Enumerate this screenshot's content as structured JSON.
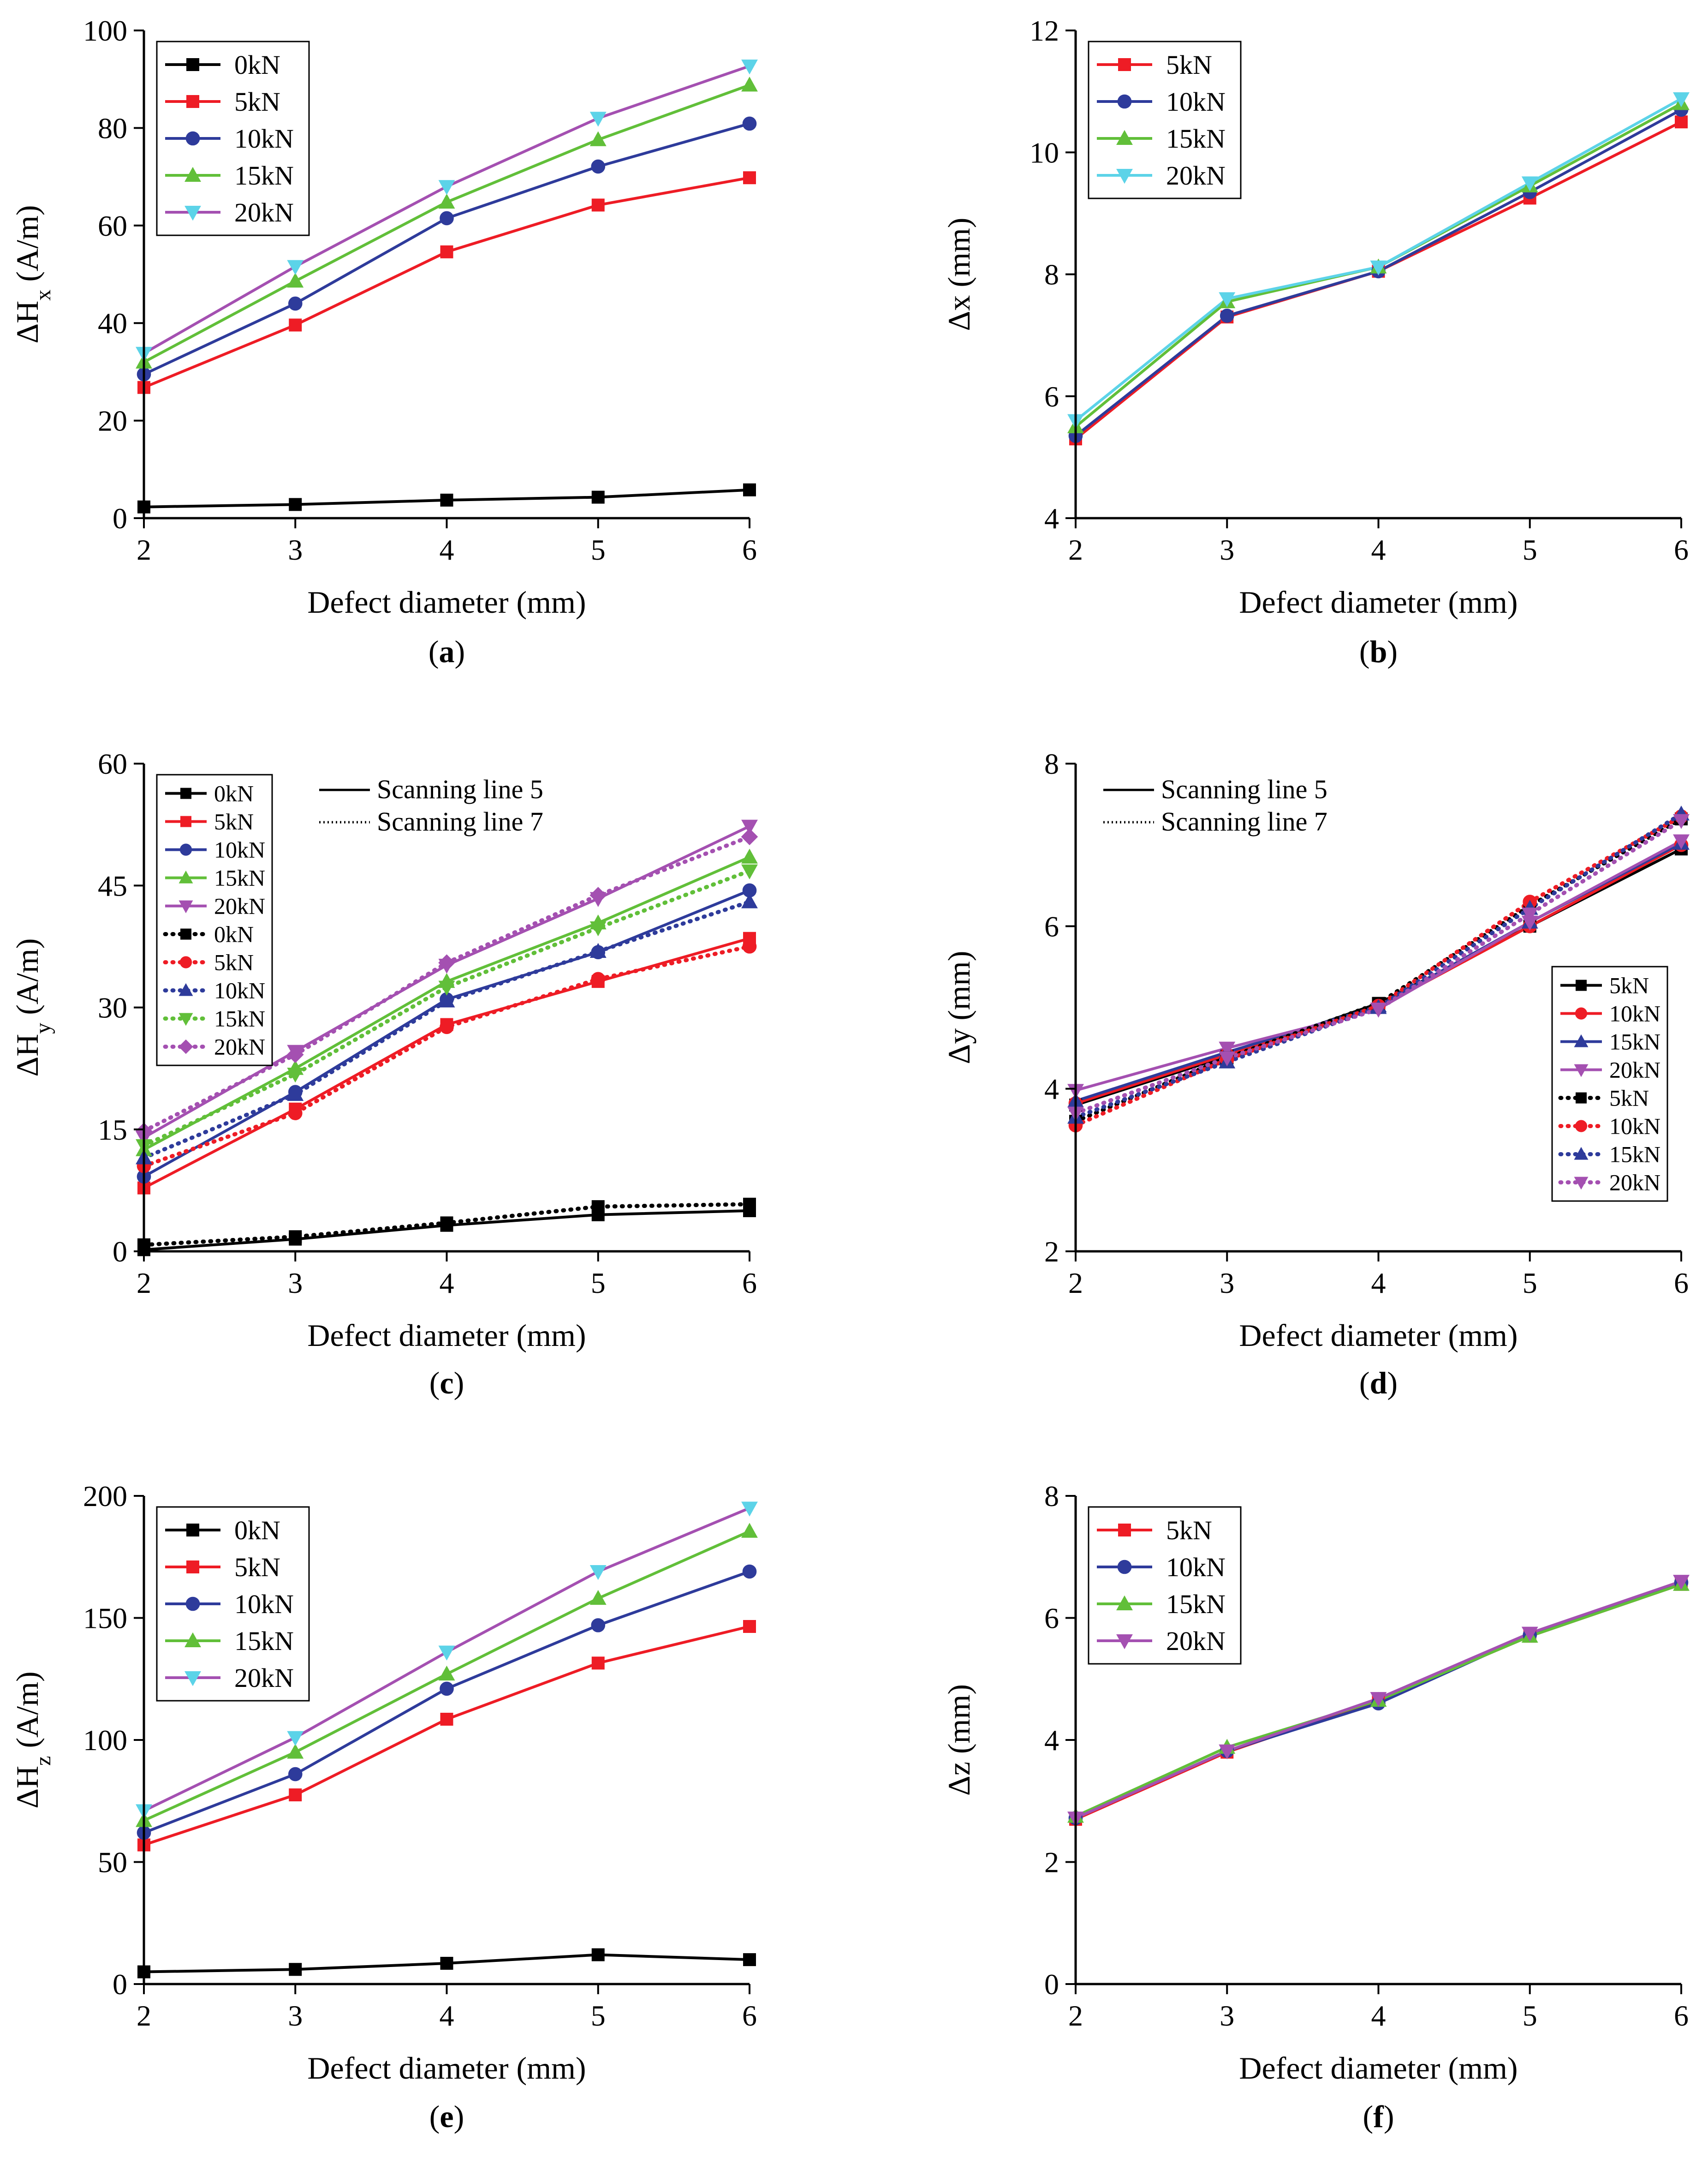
{
  "figure": {
    "background": "#ffffff"
  },
  "colors": {
    "0kN": "#000000",
    "5kN": "#ee1c25",
    "10kN": "#2e3b9b",
    "15kN": "#61bf39",
    "20kN": "#a450b1",
    "20kN_cyan": "#5cd3e8"
  },
  "chart_data": [
    {
      "panel": "a",
      "type": "line",
      "caption": "a",
      "xlabel": "Defect diameter (mm)",
      "ylabel": {
        "main": "ΔH",
        "sub": "x",
        "tail": " (A/m)"
      },
      "x": [
        2,
        3,
        4,
        5,
        6
      ],
      "xlim": [
        2,
        6
      ],
      "ylim": [
        0,
        100
      ],
      "xticks": [
        2,
        3,
        4,
        5,
        6
      ],
      "yticks": [
        0,
        20,
        40,
        60,
        80,
        100
      ],
      "legend": "top-left",
      "series": [
        {
          "name": "0kN",
          "values": [
            2.3,
            2.8,
            3.7,
            4.3,
            5.8
          ],
          "color": "#000000",
          "marker": "square",
          "dashed": false
        },
        {
          "name": "5kN",
          "values": [
            26.8,
            39.6,
            54.6,
            64.2,
            69.8
          ],
          "color": "#ee1c25",
          "marker": "square",
          "dashed": false
        },
        {
          "name": "10kN",
          "values": [
            29.5,
            44.0,
            61.5,
            72.1,
            80.9
          ],
          "color": "#2e3b9b",
          "marker": "circle",
          "dashed": false
        },
        {
          "name": "15kN",
          "values": [
            32.0,
            48.6,
            64.8,
            77.6,
            88.8
          ],
          "color": "#61bf39",
          "marker": "triangle-up",
          "dashed": false
        },
        {
          "name": "20kN",
          "values": [
            33.8,
            51.6,
            68.0,
            82.0,
            92.7
          ],
          "color": "#a450b1",
          "marker": "triangle-down",
          "marker_color": "#5cd3e8",
          "dashed": false
        }
      ]
    },
    {
      "panel": "b",
      "type": "line",
      "caption": "b",
      "xlabel": "Defect diameter (mm)",
      "ylabel": {
        "main": "Δx",
        "sub": "",
        "tail": " (mm)"
      },
      "x": [
        2,
        3,
        4,
        5,
        6
      ],
      "xlim": [
        2,
        6
      ],
      "ylim": [
        4,
        12
      ],
      "xticks": [
        2,
        3,
        4,
        5,
        6
      ],
      "yticks": [
        4,
        6,
        8,
        10,
        12
      ],
      "legend": "top-left",
      "series": [
        {
          "name": "5kN",
          "values": [
            5.3,
            7.3,
            8.05,
            9.25,
            10.5
          ],
          "color": "#ee1c25",
          "marker": "square",
          "dashed": false
        },
        {
          "name": "10kN",
          "values": [
            5.35,
            7.32,
            8.05,
            9.35,
            10.7
          ],
          "color": "#2e3b9b",
          "marker": "circle",
          "dashed": false
        },
        {
          "name": "15kN",
          "values": [
            5.5,
            7.55,
            8.12,
            9.45,
            10.8
          ],
          "color": "#61bf39",
          "marker": "triangle-up",
          "dashed": false
        },
        {
          "name": "20kN",
          "values": [
            5.6,
            7.6,
            8.12,
            9.5,
            10.88
          ],
          "color": "#5cd3e8",
          "marker": "triangle-down",
          "dashed": false
        }
      ]
    },
    {
      "panel": "c",
      "type": "line",
      "caption": "c",
      "xlabel": "Defect diameter (mm)",
      "ylabel": {
        "main": "ΔH",
        "sub": "y",
        "tail": " (A/m)"
      },
      "x": [
        2,
        3,
        4,
        5,
        6
      ],
      "xlim": [
        2,
        6
      ],
      "ylim": [
        0,
        60
      ],
      "xticks": [
        2,
        3,
        4,
        5,
        6
      ],
      "yticks": [
        0,
        15,
        30,
        45,
        60
      ],
      "legend": "top-left",
      "style_legend": [
        "Scanning line 5",
        "Scanning line 7"
      ],
      "series": [
        {
          "name": "0kN",
          "values": [
            0.2,
            1.5,
            3.2,
            4.5,
            5.0
          ],
          "color": "#000000",
          "marker": "square",
          "dashed": false
        },
        {
          "name": "5kN",
          "values": [
            7.8,
            17.5,
            27.9,
            33.2,
            38.5
          ],
          "color": "#ee1c25",
          "marker": "square",
          "dashed": false
        },
        {
          "name": "10kN",
          "values": [
            9.2,
            19.6,
            31.0,
            36.8,
            44.4
          ],
          "color": "#2e3b9b",
          "marker": "circle",
          "dashed": false
        },
        {
          "name": "15kN",
          "values": [
            12.5,
            22.5,
            33.2,
            40.4,
            48.5
          ],
          "color": "#61bf39",
          "marker": "triangle-up",
          "dashed": false
        },
        {
          "name": "20kN",
          "values": [
            14.0,
            24.6,
            35.2,
            43.4,
            52.3
          ],
          "color": "#a450b1",
          "marker": "triangle-down",
          "dashed": false
        },
        {
          "name": "0kN",
          "values": [
            0.8,
            1.8,
            3.5,
            5.5,
            5.8
          ],
          "color": "#000000",
          "marker": "square",
          "dashed": true
        },
        {
          "name": "5kN",
          "values": [
            10.5,
            17.0,
            27.6,
            33.5,
            37.5
          ],
          "color": "#ee1c25",
          "marker": "circle",
          "dashed": true
        },
        {
          "name": "10kN",
          "values": [
            11.5,
            19.3,
            30.8,
            36.9,
            43.0
          ],
          "color": "#2e3b9b",
          "marker": "triangle-up",
          "dashed": true
        },
        {
          "name": "15kN",
          "values": [
            13.0,
            21.8,
            32.5,
            39.8,
            46.8
          ],
          "color": "#61bf39",
          "marker": "triangle-down",
          "dashed": true
        },
        {
          "name": "20kN",
          "values": [
            14.8,
            24.2,
            35.5,
            43.8,
            51.0
          ],
          "color": "#a450b1",
          "marker": "diamond",
          "dashed": true
        }
      ]
    },
    {
      "panel": "d",
      "type": "line",
      "caption": "d",
      "xlabel": "Defect diameter (mm)",
      "ylabel": {
        "main": "Δy",
        "sub": "",
        "tail": " (mm)"
      },
      "x": [
        2,
        3,
        4,
        5,
        6
      ],
      "xlim": [
        2,
        6
      ],
      "ylim": [
        2,
        8
      ],
      "xticks": [
        2,
        3,
        4,
        5,
        6
      ],
      "yticks": [
        2,
        4,
        6,
        8
      ],
      "legend": "center-right",
      "style_legend": [
        "Scanning line 5",
        "Scanning line 7"
      ],
      "series": [
        {
          "name": "5kN",
          "values": [
            3.8,
            4.4,
            5.05,
            6.0,
            6.95
          ],
          "color": "#000000",
          "marker": "square",
          "dashed": false
        },
        {
          "name": "10kN",
          "values": [
            3.82,
            4.42,
            5.0,
            6.0,
            7.0
          ],
          "color": "#ee1c25",
          "marker": "circle",
          "dashed": false
        },
        {
          "name": "15kN",
          "values": [
            3.85,
            4.45,
            5.02,
            6.05,
            7.02
          ],
          "color": "#2e3b9b",
          "marker": "triangle-up",
          "dashed": false
        },
        {
          "name": "20kN",
          "values": [
            3.98,
            4.5,
            4.98,
            6.05,
            7.05
          ],
          "color": "#a450b1",
          "marker": "triangle-down",
          "dashed": false
        },
        {
          "name": "5kN",
          "values": [
            3.6,
            4.38,
            5.05,
            6.25,
            7.32
          ],
          "color": "#000000",
          "marker": "square",
          "dashed": true
        },
        {
          "name": "10kN",
          "values": [
            3.55,
            4.36,
            5.02,
            6.3,
            7.35
          ],
          "color": "#ee1c25",
          "marker": "circle",
          "dashed": true
        },
        {
          "name": "15kN",
          "values": [
            3.65,
            4.33,
            5.0,
            6.22,
            7.38
          ],
          "color": "#2e3b9b",
          "marker": "triangle-up",
          "dashed": true
        },
        {
          "name": "20kN",
          "values": [
            3.7,
            4.38,
            4.98,
            6.15,
            7.3
          ],
          "color": "#a450b1",
          "marker": "triangle-down",
          "dashed": true
        }
      ]
    },
    {
      "panel": "e",
      "type": "line",
      "caption": "e",
      "xlabel": "Defect diameter (mm)",
      "ylabel": {
        "main": "ΔH",
        "sub": "z",
        "tail": " (A/m)"
      },
      "x": [
        2,
        3,
        4,
        5,
        6
      ],
      "xlim": [
        2,
        6
      ],
      "ylim": [
        0,
        200
      ],
      "xticks": [
        2,
        3,
        4,
        5,
        6
      ],
      "yticks": [
        0,
        50,
        100,
        150,
        200
      ],
      "legend": "top-left",
      "series": [
        {
          "name": "0kN",
          "values": [
            5.0,
            6.0,
            8.5,
            12.0,
            10.0
          ],
          "color": "#000000",
          "marker": "square",
          "dashed": false
        },
        {
          "name": "5kN",
          "values": [
            57.0,
            77.5,
            108.5,
            131.5,
            146.5
          ],
          "color": "#ee1c25",
          "marker": "square",
          "dashed": false
        },
        {
          "name": "10kN",
          "values": [
            62.0,
            86.0,
            121.0,
            147.0,
            169.0
          ],
          "color": "#2e3b9b",
          "marker": "circle",
          "dashed": false
        },
        {
          "name": "15kN",
          "values": [
            67.0,
            95.0,
            127.0,
            158.0,
            185.5
          ],
          "color": "#61bf39",
          "marker": "triangle-up",
          "dashed": false
        },
        {
          "name": "20kN",
          "values": [
            71.0,
            101.0,
            136.0,
            169.0,
            195.0
          ],
          "color": "#a450b1",
          "marker": "triangle-down",
          "marker_color": "#5cd3e8",
          "dashed": false
        }
      ]
    },
    {
      "panel": "f",
      "type": "line",
      "caption": "f",
      "xlabel": "Defect diameter (mm)",
      "ylabel": {
        "main": "Δz",
        "sub": "",
        "tail": " (mm)"
      },
      "x": [
        2,
        3,
        4,
        5,
        6
      ],
      "xlim": [
        2,
        6
      ],
      "ylim": [
        0,
        8
      ],
      "xticks": [
        2,
        3,
        4,
        5,
        6
      ],
      "yticks": [
        0,
        2,
        4,
        6,
        8
      ],
      "legend": "top-left",
      "series": [
        {
          "name": "5kN",
          "values": [
            2.7,
            3.8,
            4.65,
            5.7,
            6.55
          ],
          "color": "#ee1c25",
          "marker": "square",
          "dashed": false
        },
        {
          "name": "10kN",
          "values": [
            2.72,
            3.82,
            4.6,
            5.72,
            6.58
          ],
          "color": "#2e3b9b",
          "marker": "circle",
          "dashed": false
        },
        {
          "name": "15kN",
          "values": [
            2.75,
            3.88,
            4.65,
            5.7,
            6.55
          ],
          "color": "#61bf39",
          "marker": "triangle-up",
          "dashed": false
        },
        {
          "name": "20kN",
          "values": [
            2.72,
            3.82,
            4.68,
            5.75,
            6.6
          ],
          "color": "#a450b1",
          "marker": "triangle-down",
          "dashed": false
        }
      ]
    }
  ]
}
